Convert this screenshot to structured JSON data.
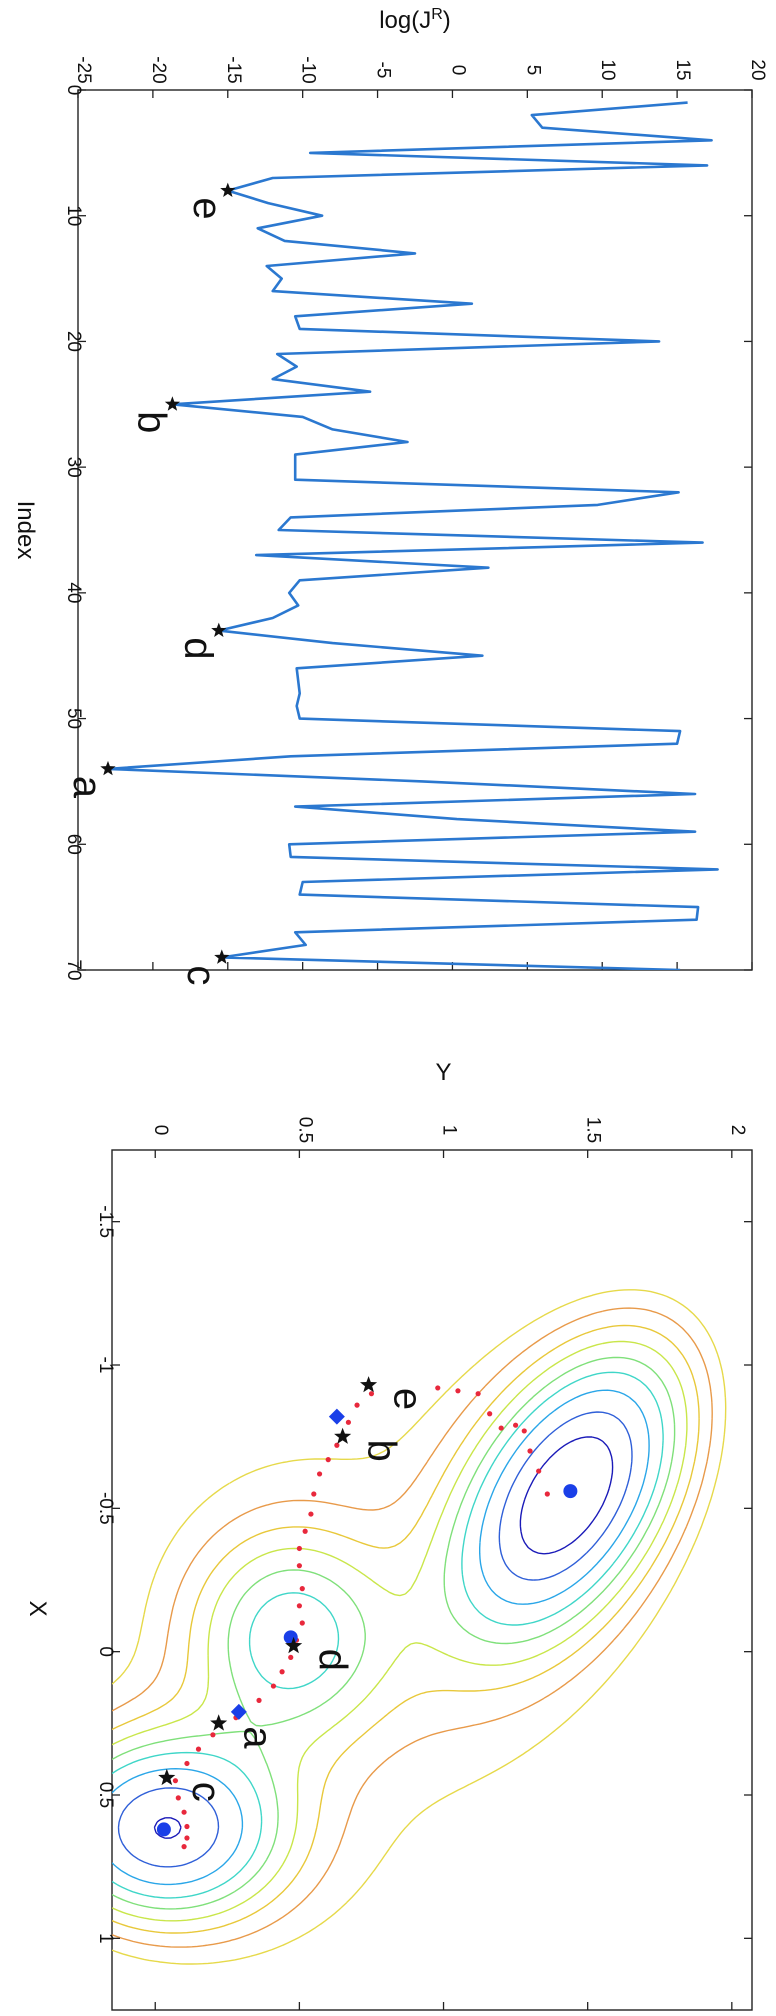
{
  "chart_data": [
    {
      "type": "line",
      "xlabel": "Index",
      "ylabel": "log(J",
      "ylabel_sup": "R",
      "ylabel_close": ")",
      "xlim": [
        0,
        70
      ],
      "ylim": [
        -25,
        20
      ],
      "xticks": [
        0,
        10,
        20,
        30,
        40,
        50,
        60,
        70
      ],
      "yticks": [
        -25,
        -20,
        -15,
        -10,
        -5,
        0,
        5,
        10,
        15,
        20
      ],
      "grid": false,
      "line_color": "#2b78d0",
      "series": [
        {
          "x": [
            1,
            2,
            3,
            4,
            5,
            6,
            7,
            8,
            9,
            10,
            11,
            12,
            13,
            14,
            15,
            16,
            17,
            18,
            19,
            20,
            21,
            22,
            23,
            24,
            25,
            26,
            27,
            28,
            29,
            30,
            31,
            32,
            33,
            34,
            35,
            36,
            37,
            38,
            39,
            40,
            41,
            42,
            43,
            44,
            45,
            46,
            47,
            48,
            49,
            50,
            51,
            52,
            53,
            54,
            55,
            56,
            57,
            58,
            59,
            60,
            61,
            62,
            63,
            64,
            65,
            66,
            67,
            68,
            69,
            70
          ],
          "y": [
            15.7,
            5.3,
            6.0,
            17.3,
            -9.5,
            17.0,
            -12.0,
            -15.0,
            -12.3,
            -8.7,
            -13.0,
            -11.2,
            -2.5,
            -12.4,
            -11.4,
            -12.0,
            1.3,
            -10.5,
            -10.2,
            13.8,
            -11.7,
            -10.4,
            -12.0,
            -5.5,
            -18.7,
            -10.0,
            -8.0,
            -3.0,
            -10.5,
            -10.5,
            -10.5,
            15.1,
            9.7,
            -10.8,
            -11.6,
            16.7,
            -13.1,
            2.4,
            -10.2,
            -10.9,
            -10.3,
            -12.0,
            -15.6,
            -8.0,
            2.0,
            -10.4,
            -10.3,
            -10.2,
            -10.4,
            -10.2,
            15.2,
            15.0,
            -10.8,
            -23.0,
            -2.0,
            16.2,
            -10.5,
            0.3,
            16.2,
            -10.9,
            -10.8,
            17.7,
            -10.0,
            -10.2,
            16.4,
            16.3,
            -10.5,
            -9.8,
            -15.4,
            15.2
          ]
        }
      ],
      "marked_points": [
        {
          "label": "e",
          "x": 8,
          "y": -15.0
        },
        {
          "label": "b",
          "x": 25,
          "y": -18.7
        },
        {
          "label": "d",
          "x": 43,
          "y": -15.6
        },
        {
          "label": "a",
          "x": 54,
          "y": -23.0
        },
        {
          "label": "c",
          "x": 69,
          "y": -15.4
        }
      ]
    },
    {
      "type": "contour",
      "xlabel": "X",
      "ylabel": "Y",
      "xlim": [
        -1.75,
        1.25
      ],
      "ylim": [
        -0.15,
        2.07
      ],
      "xticks": [
        -1.5,
        -1,
        -0.5,
        0,
        0.5,
        1
      ],
      "yticks": [
        0,
        0.5,
        1,
        1.5,
        2
      ],
      "contour_colors": [
        "#1a1ab8",
        "#2f5fd8",
        "#2aa6e8",
        "#3fd6c8",
        "#7fe07a",
        "#c9e64a",
        "#e8c83a",
        "#e89a4a",
        "#e6d94a"
      ],
      "minima": [
        {
          "x": -0.56,
          "y": 1.44
        },
        {
          "x": 0.62,
          "y": 0.03
        },
        {
          "x": -0.05,
          "y": 0.47
        }
      ],
      "saddles": [
        {
          "x": -0.82,
          "y": 0.63
        },
        {
          "x": 0.21,
          "y": 0.29
        }
      ],
      "marked_points": [
        {
          "label": "e",
          "x": -0.93,
          "y": 0.74
        },
        {
          "label": "b",
          "x": -0.75,
          "y": 0.65
        },
        {
          "label": "d",
          "x": -0.02,
          "y": 0.48
        },
        {
          "label": "a",
          "x": 0.25,
          "y": 0.22
        },
        {
          "label": "c",
          "x": 0.44,
          "y": 0.04
        }
      ],
      "path_points": [
        {
          "x": -0.92,
          "y": 0.98
        },
        {
          "x": -0.91,
          "y": 1.05
        },
        {
          "x": -0.9,
          "y": 1.12
        },
        {
          "x": -0.83,
          "y": 1.16
        },
        {
          "x": -0.78,
          "y": 1.2
        },
        {
          "x": -0.79,
          "y": 1.25
        },
        {
          "x": -0.77,
          "y": 1.28
        },
        {
          "x": -0.7,
          "y": 1.3
        },
        {
          "x": -0.63,
          "y": 1.33
        },
        {
          "x": -0.55,
          "y": 1.36
        },
        {
          "x": -0.9,
          "y": 0.75
        },
        {
          "x": -0.86,
          "y": 0.7
        },
        {
          "x": -0.8,
          "y": 0.67
        },
        {
          "x": -0.72,
          "y": 0.63
        },
        {
          "x": -0.67,
          "y": 0.6
        },
        {
          "x": -0.62,
          "y": 0.57
        },
        {
          "x": -0.55,
          "y": 0.55
        },
        {
          "x": -0.48,
          "y": 0.54
        },
        {
          "x": -0.42,
          "y": 0.52
        },
        {
          "x": -0.36,
          "y": 0.5
        },
        {
          "x": -0.3,
          "y": 0.5
        },
        {
          "x": -0.22,
          "y": 0.51
        },
        {
          "x": -0.16,
          "y": 0.5
        },
        {
          "x": -0.1,
          "y": 0.51
        },
        {
          "x": -0.04,
          "y": 0.49
        },
        {
          "x": 0.02,
          "y": 0.47
        },
        {
          "x": 0.07,
          "y": 0.44
        },
        {
          "x": 0.12,
          "y": 0.41
        },
        {
          "x": 0.17,
          "y": 0.36
        },
        {
          "x": 0.23,
          "y": 0.28
        },
        {
          "x": 0.29,
          "y": 0.2
        },
        {
          "x": 0.34,
          "y": 0.15
        },
        {
          "x": 0.39,
          "y": 0.11
        },
        {
          "x": 0.45,
          "y": 0.07
        },
        {
          "x": 0.51,
          "y": 0.08
        },
        {
          "x": 0.56,
          "y": 0.1
        },
        {
          "x": 0.61,
          "y": 0.11
        },
        {
          "x": 0.65,
          "y": 0.11
        },
        {
          "x": 0.68,
          "y": 0.1
        }
      ]
    }
  ]
}
